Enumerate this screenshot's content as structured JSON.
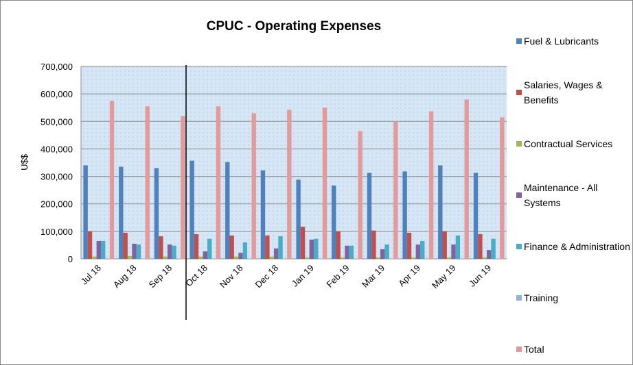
{
  "chart_data": {
    "type": "bar",
    "title": "CPUC - Operating Expenses",
    "y_label": "U$$",
    "categories": [
      "Jul 18",
      "Aug 18",
      "Sep 18",
      "Oct 18",
      "Nov 18",
      "Dec 18",
      "Jan 19",
      "Feb 19",
      "Mar 19",
      "Apr 19",
      "May 19",
      "Jun 19"
    ],
    "series": [
      {
        "name": "Fuel & Lubricants",
        "color": "#4f81bd",
        "values": [
          340000,
          335000,
          330000,
          357000,
          352000,
          322000,
          288000,
          267000,
          313000,
          318000,
          340000,
          313000
        ]
      },
      {
        "name": "Salaries, Wages & Benefits",
        "color": "#c0504d",
        "values": [
          100000,
          95000,
          82000,
          90000,
          85000,
          85000,
          117000,
          100000,
          103000,
          95000,
          100000,
          90000
        ]
      },
      {
        "name": "Contractual Services",
        "color": "#9bbb59",
        "values": [
          8000,
          10000,
          8000,
          8000,
          8000,
          8000,
          5000,
          5000,
          5000,
          5000,
          5000,
          5000
        ]
      },
      {
        "name": "Maintenance - All Systems",
        "color": "#8064a2",
        "values": [
          65000,
          55000,
          52000,
          27000,
          22000,
          38000,
          70000,
          48000,
          35000,
          52000,
          52000,
          32000
        ]
      },
      {
        "name": "Finance & Administration",
        "color": "#4bacc6",
        "values": [
          65000,
          52000,
          48000,
          73000,
          60000,
          82000,
          73000,
          48000,
          52000,
          65000,
          85000,
          73000
        ]
      },
      {
        "name": "Training",
        "color": "#95b3d7",
        "values": [
          1000,
          1000,
          1000,
          1000,
          1000,
          1000,
          1000,
          1000,
          1000,
          1000,
          1000,
          1000
        ]
      },
      {
        "name": "Total",
        "color": "#e39a9a",
        "values": [
          575000,
          555000,
          520000,
          555000,
          530000,
          542000,
          550000,
          465000,
          500000,
          537000,
          580000,
          515000
        ]
      }
    ],
    "ylim": [
      0,
      700000
    ],
    "yticks": [
      0,
      {
        "value": 100000,
        "label": "100,000"
      },
      {
        "value": 200000,
        "label": "200,000"
      },
      {
        "value": 300000,
        "label": "300,000"
      },
      {
        "value": 400000,
        "label": "400,000"
      },
      {
        "value": 500000,
        "label": "500,000"
      },
      {
        "value": 600000,
        "label": "600,000"
      },
      {
        "value": 700000,
        "label": "700,000"
      }
    ],
    "grid": true,
    "legend": "right"
  }
}
